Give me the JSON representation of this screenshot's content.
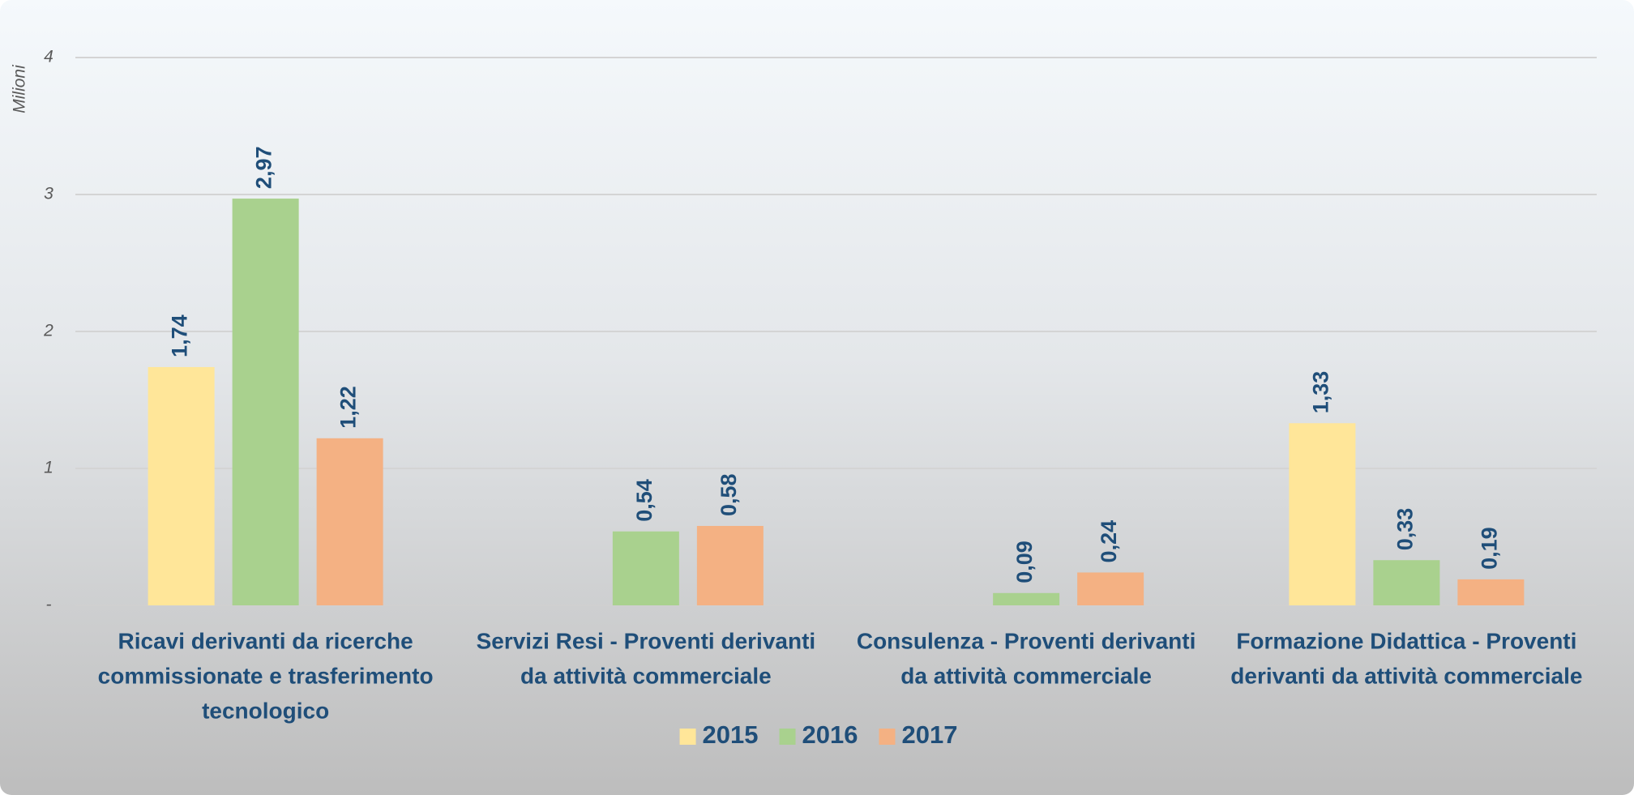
{
  "chart_data": {
    "type": "bar",
    "y_axis_label": "Milioni",
    "categories": [
      [
        "Ricavi derivanti da ricerche",
        "commissionate e trasferimento",
        "tecnologico"
      ],
      [
        "Servizi Resi - Proventi derivanti",
        "da attività commerciale"
      ],
      [
        "Consulenza - Proventi derivanti",
        "da attività commerciale"
      ],
      [
        "Formazione Didattica - Proventi",
        "derivanti da attività commerciale"
      ]
    ],
    "series": [
      {
        "name": "2015",
        "color": "#ffe699",
        "values": [
          1.74,
          null,
          null,
          1.33
        ],
        "value_labels": [
          "1,74",
          null,
          null,
          "1,33"
        ]
      },
      {
        "name": "2016",
        "color": "#a9d18e",
        "values": [
          2.97,
          0.54,
          0.09,
          0.33
        ],
        "value_labels": [
          "2,97",
          "0,54",
          "0,09",
          "0,33"
        ]
      },
      {
        "name": "2017",
        "color": "#f4b183",
        "values": [
          1.22,
          0.58,
          0.24,
          0.19
        ],
        "value_labels": [
          "1,22",
          "0,58",
          "0,24",
          "0,19"
        ]
      }
    ],
    "ylim": [
      0,
      4
    ],
    "yticks": [
      {
        "value": 0,
        "label": "-"
      },
      1,
      2,
      3,
      4
    ],
    "grid": true,
    "legend": "bottom"
  }
}
